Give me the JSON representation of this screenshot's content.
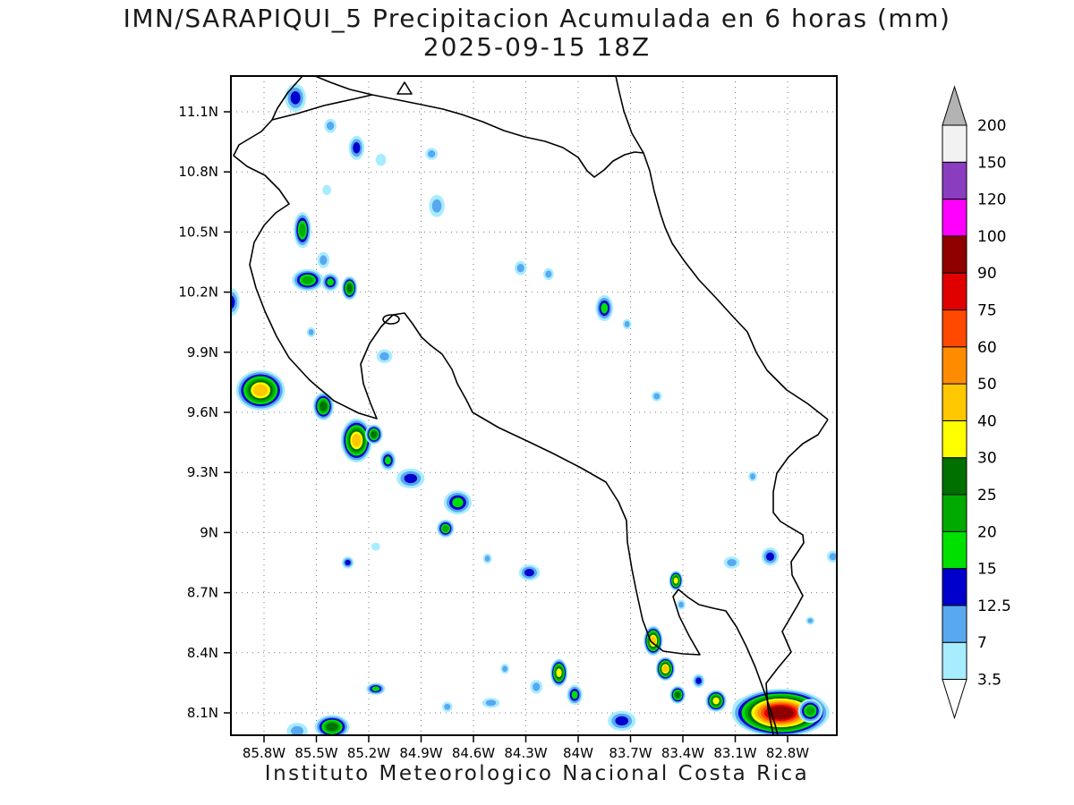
{
  "page": {
    "title_line1": "IMN/SARAPIQUI_5 Precipitacion Acumulada en 6 horas (mm)",
    "title_line2": "2025-09-15 18Z",
    "footer": "Instituto Meteorologico Nacional Costa Rica"
  },
  "chart_data": {
    "type": "heatmap",
    "title": "IMN/SARAPIQUI_5 Precipitacion Acumulada en 6 horas (mm)",
    "subtitle": "2025-09-15 18Z",
    "units": "mm",
    "grid": "dotted",
    "legend_position": "right",
    "x_ticks": [
      "85.8W",
      "85.5W",
      "85.2W",
      "84.9W",
      "84.6W",
      "84.3W",
      "84W",
      "83.7W",
      "83.4W",
      "83.1W",
      "82.8W"
    ],
    "y_ticks": [
      "11.1N",
      "10.8N",
      "10.5N",
      "10.2N",
      "9.9N",
      "9.6N",
      "9.3N",
      "9N",
      "8.7N",
      "8.4N",
      "8.1N"
    ],
    "lon_range_deg_w": [
      85.8,
      82.8
    ],
    "lat_range_deg_n": [
      8.1,
      11.1
    ],
    "colorbar": {
      "levels": [
        3.5,
        7,
        12.5,
        15,
        20,
        25,
        30,
        40,
        50,
        60,
        75,
        90,
        100,
        120,
        150,
        200
      ],
      "colors": [
        "#ffffff",
        "#a8ecff",
        "#58a8f0",
        "#0000cd",
        "#00e000",
        "#00aa00",
        "#007000",
        "#ffff00",
        "#ffc800",
        "#ff8c00",
        "#ff4800",
        "#e00000",
        "#900000",
        "#ff00ff",
        "#8a3dbf",
        "#f2f2f2",
        "#b3b3b3"
      ],
      "under_color": "#ffffff",
      "over_color": "#b3b3b3"
    },
    "cells": [
      {
        "lon": 85.62,
        "lat": 11.17,
        "rx": 0.06,
        "ry": 0.07,
        "peak": 12.5
      },
      {
        "lon": 85.42,
        "lat": 11.03,
        "rx": 0.035,
        "ry": 0.035,
        "peak": 7
      },
      {
        "lon": 85.27,
        "lat": 10.92,
        "rx": 0.045,
        "ry": 0.06,
        "peak": 12.5
      },
      {
        "lon": 85.13,
        "lat": 10.86,
        "rx": 0.03,
        "ry": 0.03,
        "peak": 3.5
      },
      {
        "lon": 84.84,
        "lat": 10.89,
        "rx": 0.035,
        "ry": 0.03,
        "peak": 7
      },
      {
        "lon": 84.81,
        "lat": 10.63,
        "rx": 0.045,
        "ry": 0.055,
        "peak": 7
      },
      {
        "lon": 85.44,
        "lat": 10.71,
        "rx": 0.025,
        "ry": 0.025,
        "peak": 3.5
      },
      {
        "lon": 85.58,
        "lat": 10.51,
        "rx": 0.05,
        "ry": 0.09,
        "peak": 20
      },
      {
        "lon": 85.46,
        "lat": 10.36,
        "rx": 0.035,
        "ry": 0.04,
        "peak": 7
      },
      {
        "lon": 85.55,
        "lat": 10.26,
        "rx": 0.09,
        "ry": 0.055,
        "peak": 20
      },
      {
        "lon": 85.42,
        "lat": 10.25,
        "rx": 0.05,
        "ry": 0.045,
        "peak": 15
      },
      {
        "lon": 85.31,
        "lat": 10.22,
        "rx": 0.045,
        "ry": 0.06,
        "peak": 25
      },
      {
        "lon": 85.99,
        "lat": 10.15,
        "rx": 0.05,
        "ry": 0.07,
        "peak": 12.5
      },
      {
        "lon": 84.33,
        "lat": 10.32,
        "rx": 0.035,
        "ry": 0.035,
        "peak": 7
      },
      {
        "lon": 84.17,
        "lat": 10.29,
        "rx": 0.03,
        "ry": 0.03,
        "peak": 7
      },
      {
        "lon": 83.85,
        "lat": 10.12,
        "rx": 0.05,
        "ry": 0.065,
        "peak": 15
      },
      {
        "lon": 83.72,
        "lat": 10.04,
        "rx": 0.025,
        "ry": 0.025,
        "peak": 7
      },
      {
        "lon": 85.53,
        "lat": 10.0,
        "rx": 0.025,
        "ry": 0.025,
        "peak": 7
      },
      {
        "lon": 85.11,
        "lat": 9.88,
        "rx": 0.045,
        "ry": 0.035,
        "peak": 7
      },
      {
        "lon": 85.82,
        "lat": 9.71,
        "rx": 0.14,
        "ry": 0.1,
        "peak": 40
      },
      {
        "lon": 85.46,
        "lat": 9.63,
        "rx": 0.06,
        "ry": 0.07,
        "peak": 25
      },
      {
        "lon": 85.27,
        "lat": 9.46,
        "rx": 0.09,
        "ry": 0.11,
        "peak": 40
      },
      {
        "lon": 85.17,
        "lat": 9.49,
        "rx": 0.05,
        "ry": 0.05,
        "peak": 25
      },
      {
        "lon": 85.09,
        "lat": 9.36,
        "rx": 0.045,
        "ry": 0.05,
        "peak": 15
      },
      {
        "lon": 84.96,
        "lat": 9.27,
        "rx": 0.08,
        "ry": 0.05,
        "peak": 12.5
      },
      {
        "lon": 84.69,
        "lat": 9.15,
        "rx": 0.08,
        "ry": 0.06,
        "peak": 15
      },
      {
        "lon": 84.76,
        "lat": 9.02,
        "rx": 0.05,
        "ry": 0.045,
        "peak": 20
      },
      {
        "lon": 85.32,
        "lat": 8.85,
        "rx": 0.035,
        "ry": 0.03,
        "peak": 12.5
      },
      {
        "lon": 85.16,
        "lat": 8.93,
        "rx": 0.025,
        "ry": 0.02,
        "peak": 3.5
      },
      {
        "lon": 84.52,
        "lat": 8.87,
        "rx": 0.025,
        "ry": 0.025,
        "peak": 7
      },
      {
        "lon": 84.28,
        "lat": 8.8,
        "rx": 0.06,
        "ry": 0.04,
        "peak": 12.5
      },
      {
        "lon": 83.44,
        "lat": 8.76,
        "rx": 0.04,
        "ry": 0.05,
        "peak": 30
      },
      {
        "lon": 83.41,
        "lat": 8.64,
        "rx": 0.025,
        "ry": 0.025,
        "peak": 7
      },
      {
        "lon": 83.12,
        "lat": 8.85,
        "rx": 0.045,
        "ry": 0.03,
        "peak": 7
      },
      {
        "lon": 82.9,
        "lat": 8.88,
        "rx": 0.05,
        "ry": 0.045,
        "peak": 12.5
      },
      {
        "lon": 83.0,
        "lat": 9.28,
        "rx": 0.025,
        "ry": 0.025,
        "peak": 7
      },
      {
        "lon": 83.55,
        "lat": 9.68,
        "rx": 0.03,
        "ry": 0.025,
        "peak": 7
      },
      {
        "lon": 82.54,
        "lat": 8.88,
        "rx": 0.035,
        "ry": 0.03,
        "peak": 7
      },
      {
        "lon": 82.67,
        "lat": 8.56,
        "rx": 0.025,
        "ry": 0.02,
        "peak": 7
      },
      {
        "lon": 83.57,
        "lat": 8.46,
        "rx": 0.055,
        "ry": 0.075,
        "peak": 40
      },
      {
        "lon": 83.5,
        "lat": 8.32,
        "rx": 0.055,
        "ry": 0.06,
        "peak": 40
      },
      {
        "lon": 83.43,
        "lat": 8.19,
        "rx": 0.045,
        "ry": 0.045,
        "peak": 25
      },
      {
        "lon": 83.31,
        "lat": 8.26,
        "rx": 0.035,
        "ry": 0.035,
        "peak": 12.5
      },
      {
        "lon": 83.21,
        "lat": 8.16,
        "rx": 0.06,
        "ry": 0.055,
        "peak": 30
      },
      {
        "lon": 83.05,
        "lat": 8.12,
        "rx": 0.065,
        "ry": 0.055,
        "peak": 25
      },
      {
        "lon": 82.84,
        "lat": 8.1,
        "rx": 0.28,
        "ry": 0.12,
        "peak": 90
      },
      {
        "lon": 82.67,
        "lat": 8.11,
        "rx": 0.07,
        "ry": 0.06,
        "peak": 20
      },
      {
        "lon": 84.11,
        "lat": 8.3,
        "rx": 0.05,
        "ry": 0.07,
        "peak": 30
      },
      {
        "lon": 84.02,
        "lat": 8.19,
        "rx": 0.045,
        "ry": 0.05,
        "peak": 15
      },
      {
        "lon": 84.24,
        "lat": 8.23,
        "rx": 0.035,
        "ry": 0.035,
        "peak": 7
      },
      {
        "lon": 84.42,
        "lat": 8.32,
        "rx": 0.025,
        "ry": 0.025,
        "peak": 7
      },
      {
        "lon": 85.16,
        "lat": 8.22,
        "rx": 0.055,
        "ry": 0.03,
        "peak": 15
      },
      {
        "lon": 85.41,
        "lat": 8.03,
        "rx": 0.1,
        "ry": 0.06,
        "peak": 25
      },
      {
        "lon": 85.61,
        "lat": 8.01,
        "rx": 0.06,
        "ry": 0.04,
        "peak": 7
      },
      {
        "lon": 84.75,
        "lat": 8.13,
        "rx": 0.03,
        "ry": 0.025,
        "peak": 7
      },
      {
        "lon": 84.5,
        "lat": 8.15,
        "rx": 0.05,
        "ry": 0.025,
        "peak": 7
      },
      {
        "lon": 83.75,
        "lat": 8.06,
        "rx": 0.08,
        "ry": 0.05,
        "peak": 12.5
      }
    ]
  }
}
